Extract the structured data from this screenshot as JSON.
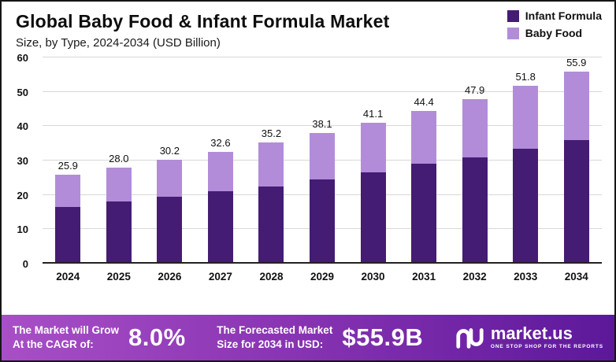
{
  "header": {
    "title": "Global Baby Food & Infant Formula Market",
    "subtitle": "Size, by Type, 2024-2034 (USD Billion)"
  },
  "legend": [
    {
      "label": "Infant Formula"
    },
    {
      "label": "Baby Food"
    }
  ],
  "chart_data": {
    "type": "bar",
    "stacked": true,
    "categories": [
      "2024",
      "2025",
      "2026",
      "2027",
      "2028",
      "2029",
      "2030",
      "2031",
      "2032",
      "2033",
      "2034"
    ],
    "series": [
      {
        "name": "Infant Formula",
        "color": "#451c73",
        "values": [
          16.5,
          18.0,
          19.5,
          21.0,
          22.5,
          24.5,
          26.5,
          29.0,
          31.0,
          33.5,
          36.0
        ]
      },
      {
        "name": "Baby Food",
        "color": "#b28cd9",
        "values": [
          9.4,
          10.0,
          10.7,
          11.6,
          12.7,
          13.6,
          14.6,
          15.4,
          16.9,
          18.3,
          19.9
        ]
      }
    ],
    "totals": [
      "25.9",
      "28.0",
      "30.2",
      "32.6",
      "35.2",
      "38.1",
      "41.1",
      "44.4",
      "47.9",
      "51.8",
      "55.9"
    ],
    "title": "Global Baby Food & Infant Formula Market",
    "xlabel": "",
    "ylabel": "USD Billion",
    "ylim": [
      0,
      60
    ],
    "yticks": [
      0,
      10,
      20,
      30,
      40,
      50,
      60
    ],
    "grid": "horizontal",
    "legend_position": "top-right"
  },
  "footer": {
    "grow_line1": "The Market will Grow",
    "grow_line2": "At the CAGR of:",
    "cagr": "8.0%",
    "forecast_line1": "The Forecasted Market",
    "forecast_line2": "Size for 2034 in USD:",
    "forecast_value": "$55.9B",
    "logo_name": "market.us",
    "logo_tagline": "ONE STOP SHOP FOR THE REPORTS"
  }
}
